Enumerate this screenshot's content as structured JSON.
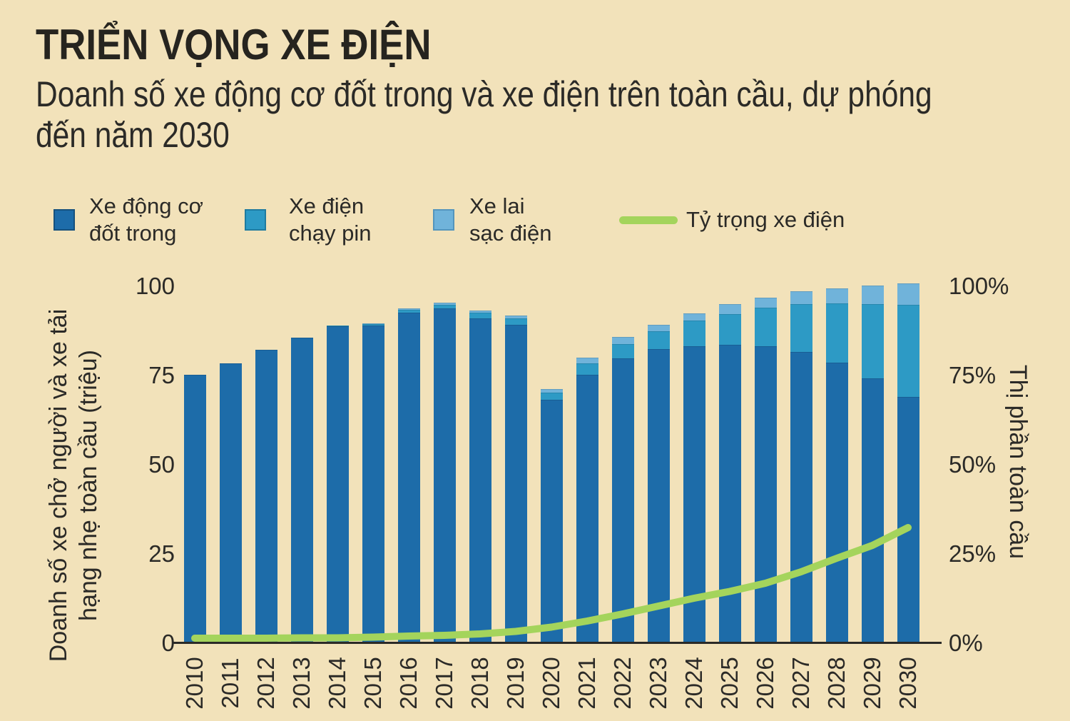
{
  "title": "TRIỂN VỌNG XE ĐIỆN",
  "subtitle_line1": "Doanh số xe động cơ đốt trong và xe điện trên toàn cầu, dự phóng",
  "subtitle_line2": "đến năm 2030",
  "colors": {
    "background": "#f2e2ba",
    "ice_bar": "#1d6ca9",
    "ice_border": "#16517d",
    "bev_bar": "#2d9ac5",
    "phev_bar": "#70b3da",
    "ev_share_line": "#a4d45c",
    "text": "#2b2a27",
    "axis_line": "#2b2a27"
  },
  "legend": {
    "items": [
      {
        "lines": [
          "Xe động cơ",
          "đốt trong"
        ],
        "swatch": "ice",
        "color": "#1d6ca9"
      },
      {
        "lines": [
          "Xe điện",
          "chạy pin"
        ],
        "swatch": "bev",
        "color": "#2d9ac5"
      },
      {
        "lines": [
          "Xe lai",
          "sạc điện"
        ],
        "swatch": "phev",
        "color": "#70b3da"
      },
      {
        "lines": [
          "Tỷ trọng xe điện"
        ],
        "swatch": "line",
        "color": "#a4d45c"
      }
    ]
  },
  "axes": {
    "left": {
      "title_line1": "Doanh số xe chở người và xe tải",
      "title_line2": "hạng nhẹ toàn cầu (triệu)",
      "ticks": [
        "100",
        "75",
        "50",
        "25",
        "0"
      ],
      "tick_values": [
        100,
        75,
        50,
        25,
        0
      ]
    },
    "right": {
      "title": "Thị phần toàn cầu",
      "ticks": [
        "100%",
        "75%",
        "50%",
        "25%",
        "0%"
      ],
      "tick_values": [
        100,
        75,
        50,
        25,
        0
      ]
    }
  },
  "chart_data": {
    "type": "bar",
    "stacked": true,
    "grid": false,
    "legend_position": "top",
    "title": "TRIỂN VỌNG XE ĐIỆN",
    "subtitle": "Doanh số xe động cơ đốt trong và xe điện trên toàn cầu, dự phóng đến năm 2030",
    "ylabel_left": "Doanh số xe chở người và xe tải hạng nhẹ toàn cầu (triệu)",
    "ylabel_right": "Thị phần toàn cầu",
    "ylim_left": [
      0,
      100
    ],
    "ylim_right": [
      0,
      100
    ],
    "categories": [
      "2010",
      "2011",
      "2012",
      "2013",
      "2014",
      "2015",
      "2016",
      "2017",
      "2018",
      "2019",
      "2020",
      "2021",
      "2022",
      "2023",
      "2024",
      "2025",
      "2026",
      "2027",
      "2028",
      "2029",
      "2030"
    ],
    "series": [
      {
        "name": "Xe động cơ đốt trong",
        "type": "bar",
        "color": "#1d6ca9",
        "values": [
          75.3,
          78.5,
          82.3,
          85.6,
          88.8,
          89.0,
          92.6,
          93.9,
          91.0,
          89.2,
          68.3,
          75.2,
          79.9,
          82.5,
          83.2,
          83.7,
          83.3,
          81.7,
          78.7,
          74.2,
          69.1
        ]
      },
      {
        "name": "Xe điện chạy pin",
        "type": "bar",
        "color": "#2d9ac5",
        "values": [
          0,
          0,
          0,
          0,
          0.2,
          0.5,
          0.8,
          1.0,
          1.6,
          1.9,
          2.0,
          3.2,
          4.0,
          5.0,
          7.2,
          8.6,
          10.7,
          13.3,
          16.6,
          20.8,
          25.8
        ]
      },
      {
        "name": "Xe lai sạc điện",
        "type": "bar",
        "color": "#70b3da",
        "values": [
          0,
          0,
          0,
          0,
          0.1,
          0.2,
          0.4,
          0.5,
          0.7,
          0.8,
          1.0,
          1.6,
          1.9,
          1.8,
          2.0,
          2.7,
          2.9,
          3.7,
          4.2,
          5.3,
          6.0
        ]
      },
      {
        "name": "Tỷ trọng xe điện",
        "type": "line",
        "axis": "right",
        "unit": "%",
        "color": "#a4d45c",
        "values": [
          1.4,
          1.4,
          1.4,
          1.5,
          1.5,
          1.7,
          2.0,
          2.2,
          2.6,
          3.3,
          4.5,
          6.2,
          8.2,
          10.4,
          12.6,
          14.5,
          16.8,
          20.0,
          23.8,
          27.4,
          32.4
        ]
      }
    ]
  }
}
